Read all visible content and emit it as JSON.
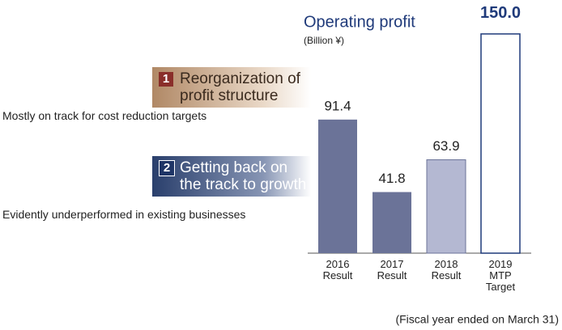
{
  "panels": [
    {
      "number": "1",
      "title": "Reorganization of profit structure",
      "text": "Mostly on track for cost reduction targets"
    },
    {
      "number": "2",
      "title": "Getting back on the track to growth",
      "text": "Evidently underperformed in existing businesses"
    }
  ],
  "chart_data": {
    "type": "bar",
    "title": "Operating profit",
    "subtitle": "(Billion ¥)",
    "categories": [
      "2016 Result",
      "2017 Result",
      "2018 Result",
      "2019 MTP Target"
    ],
    "values": [
      91.4,
      41.8,
      63.9,
      150
    ],
    "value_labels": [
      "91.4",
      "41.8",
      "63.9",
      "150.0"
    ],
    "colors": [
      "#6b7398",
      "#6b7398",
      "#b4b8d2",
      "#ffffff"
    ],
    "note": "(Fiscal year ended on March 31)"
  }
}
